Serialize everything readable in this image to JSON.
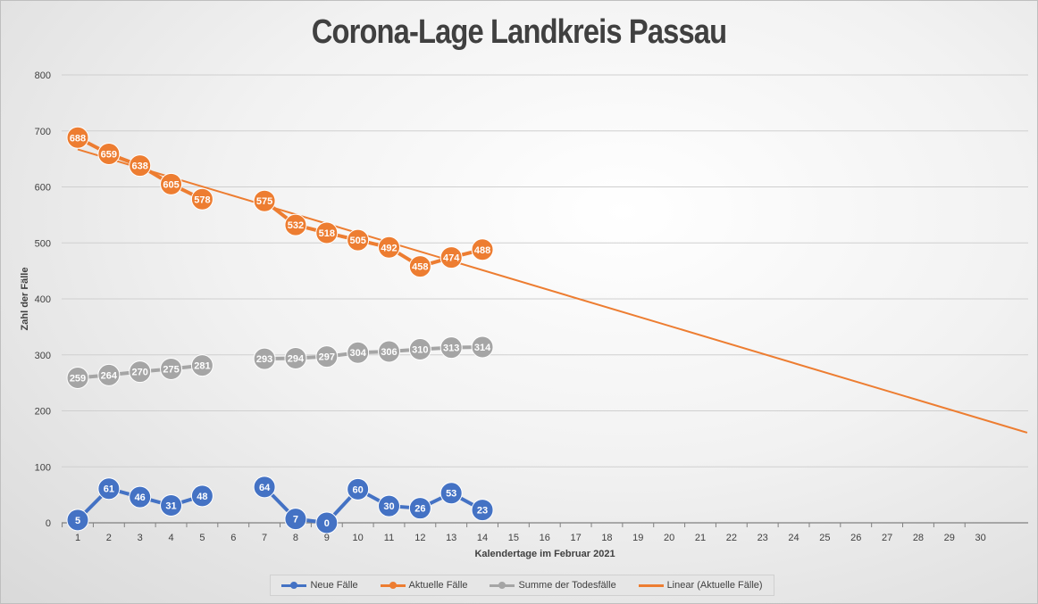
{
  "chart_data": {
    "type": "line",
    "title": "Corona-Lage Landkreis Passau",
    "xlabel": "Kalendertage im Februar 2021",
    "ylabel": "Zahl der Fälle",
    "xlim": [
      1,
      30
    ],
    "ylim": [
      0,
      800
    ],
    "yticks": [
      0,
      100,
      200,
      300,
      400,
      500,
      600,
      700,
      800
    ],
    "x_categories": [
      1,
      2,
      3,
      4,
      5,
      6,
      7,
      8,
      9,
      10,
      11,
      12,
      13,
      14,
      15,
      16,
      17,
      18,
      19,
      20,
      21,
      22,
      23,
      24,
      25,
      26,
      27,
      28,
      29,
      30
    ],
    "grid": true,
    "legend_position": "bottom",
    "series": [
      {
        "name": "Neue Fälle",
        "color": "#4472c4",
        "x": [
          1,
          2,
          3,
          4,
          5,
          7,
          8,
          9,
          10,
          11,
          12,
          13,
          14
        ],
        "values": [
          5,
          61,
          46,
          31,
          48,
          64,
          7,
          0,
          60,
          30,
          26,
          53,
          23
        ],
        "labels": [
          "5",
          "61",
          "46",
          "31",
          "48",
          "64",
          "7",
          "0",
          "60",
          "30",
          "26",
          "53",
          "23"
        ]
      },
      {
        "name": "Aktuelle Fälle",
        "color": "#ed7d31",
        "x": [
          1,
          2,
          3,
          4,
          5,
          7,
          8,
          9,
          10,
          11,
          12,
          13,
          14
        ],
        "values": [
          688,
          659,
          638,
          605,
          578,
          575,
          532,
          518,
          505,
          492,
          458,
          474,
          488
        ],
        "labels": [
          "688",
          "659",
          "638",
          "605",
          "578",
          "575",
          "532",
          "518",
          "505",
          "492",
          "458",
          "474",
          "488"
        ]
      },
      {
        "name": "Summe der Todesfälle",
        "color": "#a5a5a5",
        "x": [
          1,
          2,
          3,
          4,
          5,
          7,
          8,
          9,
          10,
          11,
          12,
          13,
          14
        ],
        "values": [
          259,
          264,
          270,
          275,
          281,
          293,
          294,
          297,
          304,
          306,
          310,
          313,
          314
        ],
        "labels": [
          "259",
          "264",
          "270",
          "275",
          "281",
          "293",
          "294",
          "297",
          "304",
          "306",
          "310",
          "313",
          "314"
        ]
      },
      {
        "name": "Linear (Aktuelle Fälle)",
        "color": "#ed7d31",
        "trendline": true,
        "x": [
          1,
          31.5
        ],
        "values": [
          667,
          161
        ]
      }
    ]
  }
}
